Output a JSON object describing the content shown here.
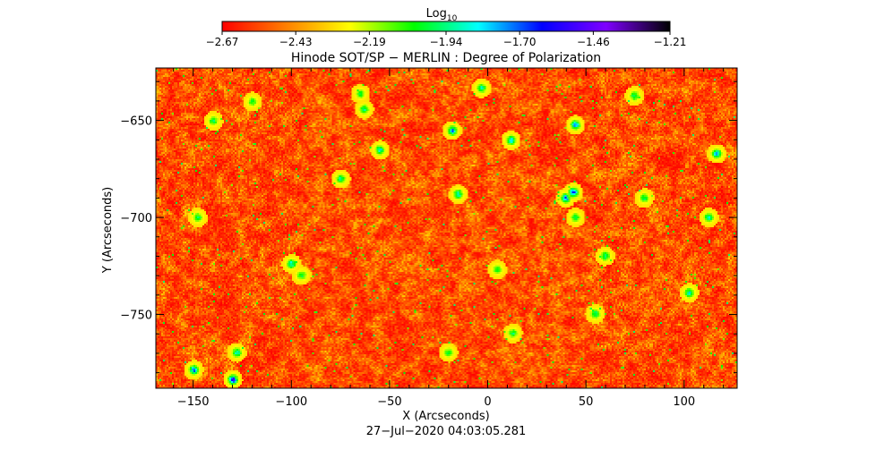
{
  "chart_data": {
    "type": "heatmap",
    "title": "Hinode SOT/SP − MERLIN : Degree of Polarization",
    "xlabel": "X (Arcseconds)",
    "ylabel": "Y (Arcseconds)",
    "timestamp": "27−Jul−2020 04:03:05.281",
    "colorbar": {
      "label_base": "Log",
      "label_sub": "10",
      "min": -2.67,
      "max": -1.21,
      "ticks": [
        -2.67,
        -2.43,
        -2.19,
        -1.94,
        -1.7,
        -1.46,
        -1.21
      ],
      "tick_labels": [
        "−2.67",
        "−2.43",
        "−2.19",
        "−1.94",
        "−1.70",
        "−1.46",
        "−1.21"
      ],
      "colors": [
        "#ff0000",
        "#ff7f00",
        "#ffff00",
        "#00ff00",
        "#00ffff",
        "#0000ff",
        "#7f00ff",
        "#000000"
      ]
    },
    "xlim": [
      -169,
      127
    ],
    "ylim": [
      -788,
      -623
    ],
    "xticks": [
      -150,
      -100,
      -50,
      0,
      50,
      100
    ],
    "xtick_labels": [
      "−150",
      "−100",
      "−50",
      "0",
      "50",
      "100"
    ],
    "yticks": [
      -650,
      -700,
      -750
    ],
    "ytick_labels": [
      "−650",
      "−700",
      "−750"
    ],
    "field": {
      "background_range": [
        -2.67,
        -2.3
      ],
      "features": [
        {
          "x": -150,
          "y": -779,
          "v": -1.55
        },
        {
          "x": -130,
          "y": -784,
          "v": -1.4
        },
        {
          "x": -128,
          "y": -770,
          "v": -1.75
        },
        {
          "x": -148,
          "y": -700,
          "v": -1.9
        },
        {
          "x": -100,
          "y": -724,
          "v": -1.75
        },
        {
          "x": -95,
          "y": -730,
          "v": -1.9
        },
        {
          "x": -65,
          "y": -636,
          "v": -1.95
        },
        {
          "x": -63,
          "y": -644,
          "v": -1.85
        },
        {
          "x": -55,
          "y": -665,
          "v": -1.75
        },
        {
          "x": -3,
          "y": -633,
          "v": -1.8
        },
        {
          "x": -18,
          "y": -655,
          "v": -1.6
        },
        {
          "x": 12,
          "y": -660,
          "v": -1.7
        },
        {
          "x": -15,
          "y": -688,
          "v": -1.75
        },
        {
          "x": 40,
          "y": -690,
          "v": -1.55
        },
        {
          "x": 44,
          "y": -687,
          "v": -1.45
        },
        {
          "x": 45,
          "y": -700,
          "v": -1.9
        },
        {
          "x": 45,
          "y": -652,
          "v": -1.6
        },
        {
          "x": 75,
          "y": -637,
          "v": -1.85
        },
        {
          "x": 117,
          "y": -667,
          "v": -1.6
        },
        {
          "x": 113,
          "y": -700,
          "v": -1.8
        },
        {
          "x": 55,
          "y": -750,
          "v": -1.85
        },
        {
          "x": 60,
          "y": -720,
          "v": -1.8
        },
        {
          "x": 103,
          "y": -739,
          "v": -1.75
        },
        {
          "x": 13,
          "y": -760,
          "v": -1.9
        },
        {
          "x": -20,
          "y": -770,
          "v": -1.95
        },
        {
          "x": 5,
          "y": -727,
          "v": -1.95
        },
        {
          "x": -120,
          "y": -640,
          "v": -1.95
        },
        {
          "x": -140,
          "y": -650,
          "v": -1.9
        },
        {
          "x": -75,
          "y": -680,
          "v": -1.85
        },
        {
          "x": 80,
          "y": -690,
          "v": -1.9
        }
      ]
    }
  }
}
